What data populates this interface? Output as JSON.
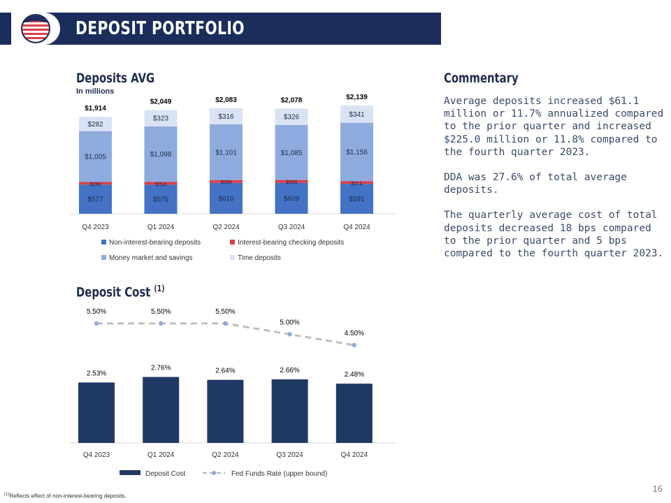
{
  "header": {
    "title": "DEPOSIT PORTFOLIO"
  },
  "deposits": {
    "title": "Deposits AVG",
    "subtitle": "In millions"
  },
  "cost": {
    "title": "Deposit Cost",
    "title_sup": "(1)"
  },
  "commentary": {
    "title": "Commentary",
    "paragraphs": [
      "Average deposits increased $61.1 million or 11.7% annualized compared to the prior quarter and increased $225.0 million or 11.8% compared to the fourth quarter 2023.",
      "DDA was 27.6% of total average deposits.",
      "The quarterly average cost of total deposits decreased 18 bps compared to the prior quarter and 5 bps compared to the fourth quarter 2023."
    ]
  },
  "page_number": "16",
  "footnote": {
    "mark": "(1)",
    "text": "Reflects effect of non-interest-bearing deposits."
  },
  "colors": {
    "navy": "#1b2d5a",
    "non_interest": "#4472c4",
    "interest_checking": "#d9404a",
    "money_market": "#8fabdd",
    "time_deposits": "#dae3f3",
    "deposit_cost_bar": "#203864",
    "fed_funds_line": "#bfbfbf",
    "fed_funds_marker": "#8fabdd"
  },
  "chart_data": [
    {
      "type": "bar",
      "stacked": true,
      "categories": [
        "Q4 2023",
        "Q1 2024",
        "Q2 2024",
        "Q3 2024",
        "Q4 2024"
      ],
      "series": [
        {
          "name": "Non-interest-bearing deposits",
          "values": [
            577,
            575,
            610,
            609,
            591
          ],
          "labels": [
            "$577",
            "$575",
            "$610",
            "$609",
            "$591"
          ]
        },
        {
          "name": "Interest-bearing checking deposits",
          "values": [
            50,
            53,
            56,
            58,
            51
          ],
          "labels": [
            "$50",
            "$53",
            "$56",
            "$58",
            "$51"
          ]
        },
        {
          "name": "Money market and savings",
          "values": [
            1005,
            1098,
            1101,
            1085,
            1156
          ],
          "labels": [
            "$1,005",
            "$1,098",
            "$1,101",
            "$1,085",
            "$1,156"
          ]
        },
        {
          "name": "Time deposits",
          "values": [
            282,
            323,
            316,
            326,
            341
          ],
          "labels": [
            "$282",
            "$323",
            "$316",
            "$326",
            "$341"
          ]
        }
      ],
      "totals": [
        1914,
        2049,
        2083,
        2078,
        2139
      ],
      "total_labels": [
        "$1,914",
        "$2,049",
        "$2,083",
        "$2,078",
        "$2,139"
      ],
      "legend": "bottom"
    },
    {
      "type": "bar",
      "categories": [
        "Q4 2023",
        "Q1 2024",
        "Q2 2024",
        "Q3 2024",
        "Q4 2024"
      ],
      "series": [
        {
          "name": "Deposit Cost",
          "type": "bar",
          "values": [
            2.53,
            2.76,
            2.64,
            2.66,
            2.48
          ],
          "labels": [
            "2.53%",
            "2.76%",
            "2.64%",
            "2.66%",
            "2.48%"
          ]
        },
        {
          "name": "Fed Funds Rate (upper bound)",
          "type": "line",
          "line_style": "dashed",
          "values": [
            5.5,
            5.5,
            5.5,
            5.0,
            4.5
          ],
          "labels": [
            "5.50%",
            "5.50%",
            "5.50%",
            "5.00%",
            "4.50%"
          ]
        }
      ],
      "legend": "bottom"
    }
  ]
}
